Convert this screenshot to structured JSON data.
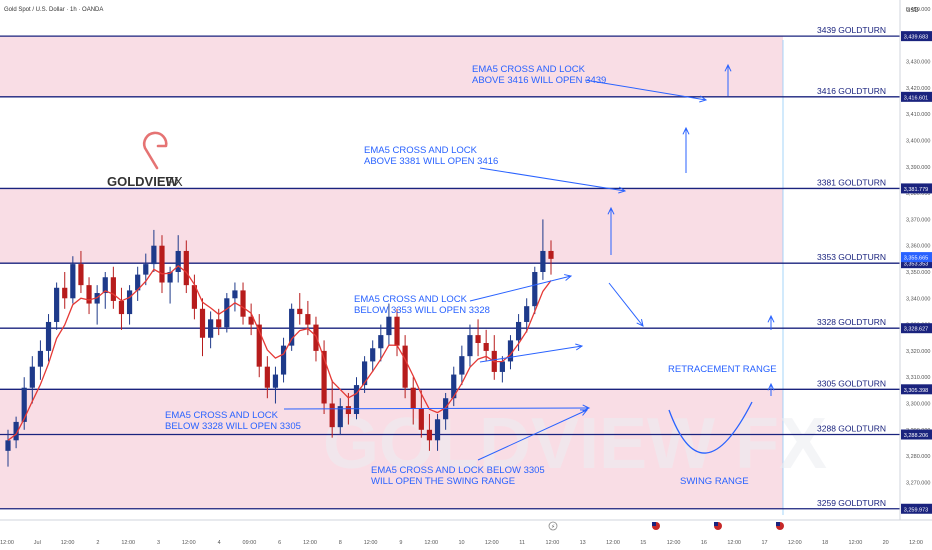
{
  "header": {
    "title": "Gold Spot / U.S. Dollar · 1h · OANDA",
    "currency": "USD"
  },
  "logo": {
    "brand": "GOLDVIEW",
    "suffix": "FX",
    "watermark": "GOLDVIEW FX"
  },
  "colors": {
    "zone_fill": "#f8d7e1",
    "level_line": "#1a237e",
    "annotation": "#2962ff",
    "candle_up": "#1e3a8a",
    "candle_down": "#b71c1c",
    "ema": "#e53935",
    "logo_accent": "#e57373",
    "label_bg": "#1a237e"
  },
  "footer": {
    "icons": [
      "lightning-icon",
      "us-flag-icon",
      "us-flag-icon",
      "us-flag-icon"
    ]
  },
  "chart_data": {
    "type": "candlestick",
    "title": "Gold Spot / U.S. Dollar · 1h · OANDA",
    "ylim": [
      3255,
      3450
    ],
    "y_axis_ticks": [
      3260,
      3270,
      3280,
      3290,
      3300,
      3310,
      3320,
      3330,
      3340,
      3350,
      3360,
      3370,
      3380,
      3390,
      3400,
      3410,
      3420,
      3430,
      3440,
      3450
    ],
    "y_axis_labels": [
      "3,260.000",
      "3,270.000",
      "3,280.000",
      "3,290.000",
      "3,300.000",
      "3,310.000",
      "3,320.000",
      "3,330.000",
      "3,340.000",
      "3,350.000",
      "3,360.000",
      "3,370.000",
      "3,380.000",
      "3,390.000",
      "3,400.000",
      "3,410.000",
      "3,420.000",
      "3,430.000",
      "3,440.000",
      "3,450.000"
    ],
    "x_axis_labels": [
      "12:00",
      "Jul",
      "12:00",
      "2",
      "12:00",
      "3",
      "12:00",
      "4",
      "09:00",
      "6",
      "12:00",
      "8",
      "12:00",
      "9",
      "12:00",
      "10",
      "12:00",
      "11",
      "12:00",
      "13",
      "12:00",
      "15",
      "12:00",
      "16",
      "12:00",
      "17",
      "12:00",
      "18",
      "12:00",
      "20",
      "12:00",
      "21",
      "12:0"
    ],
    "price_levels": [
      {
        "value": 3439.683,
        "label": "3439 GOLDTURN",
        "axis_label": "3,439.683"
      },
      {
        "value": 3416.601,
        "label": "3416 GOLDTURN",
        "axis_label": "3,416.601"
      },
      {
        "value": 3381.779,
        "label": "3381 GOLDTURN",
        "axis_label": "3,381.779"
      },
      {
        "value": 3353.353,
        "label": "3353 GOLDTURN",
        "axis_label": "3,353.353"
      },
      {
        "value": 3328.627,
        "label": "3328 GOLDTURN",
        "axis_label": "3,328.627"
      },
      {
        "value": 3305.398,
        "label": "3305 GOLDTURN",
        "axis_label": "3,305.398"
      },
      {
        "value": 3288.206,
        "label": "3288 GOLDTURN",
        "axis_label": "3,288.206"
      },
      {
        "value": 3259.973,
        "label": "3259 GOLDTURN",
        "axis_label": "3,259.973"
      }
    ],
    "zones": [
      {
        "from": 3416.601,
        "to": 3439.683
      },
      {
        "from": 3353.353,
        "to": 3381.779
      },
      {
        "from": 3259.973,
        "to": 3305.398
      }
    ],
    "current_price": {
      "value": 3355.665,
      "label": "3,355.665"
    },
    "annotations": [
      {
        "lines": [
          "EMA5 CROSS AND LOCK",
          "ABOVE 3416 WILL OPEN 3439"
        ]
      },
      {
        "lines": [
          "EMA5 CROSS AND LOCK",
          "ABOVE 3381 WILL OPEN 3416"
        ]
      },
      {
        "lines": [
          "EMA5 CROSS AND LOCK",
          "BELOW 3353 WILL OPEN 3328"
        ]
      },
      {
        "lines": [
          "EMA5 CROSS AND LOCK",
          "BELOW 3328 WILL OPEN 3305"
        ]
      },
      {
        "lines": [
          "EMA5 CROSS AND LOCK BELOW 3305",
          "WILL OPEN THE SWING RANGE"
        ]
      },
      {
        "lines": [
          "RETRACEMENT RANGE"
        ]
      },
      {
        "lines": [
          "SWING RANGE"
        ]
      }
    ],
    "ohlc": [
      [
        3282,
        3290,
        3276,
        3286
      ],
      [
        3286,
        3295,
        3283,
        3293
      ],
      [
        3293,
        3310,
        3290,
        3306
      ],
      [
        3306,
        3318,
        3300,
        3314
      ],
      [
        3314,
        3324,
        3309,
        3320
      ],
      [
        3320,
        3334,
        3316,
        3331
      ],
      [
        3331,
        3346,
        3328,
        3344
      ],
      [
        3344,
        3350,
        3336,
        3340
      ],
      [
        3340,
        3356,
        3338,
        3353
      ],
      [
        3353,
        3358,
        3342,
        3345
      ],
      [
        3345,
        3348,
        3334,
        3338
      ],
      [
        3338,
        3345,
        3330,
        3342
      ],
      [
        3342,
        3350,
        3336,
        3348
      ],
      [
        3348,
        3352,
        3336,
        3339
      ],
      [
        3339,
        3344,
        3328,
        3334
      ],
      [
        3334,
        3345,
        3330,
        3343
      ],
      [
        3343,
        3352,
        3339,
        3349
      ],
      [
        3349,
        3357,
        3345,
        3353
      ],
      [
        3353,
        3366,
        3350,
        3360
      ],
      [
        3360,
        3364,
        3342,
        3346
      ],
      [
        3346,
        3352,
        3338,
        3350
      ],
      [
        3350,
        3364,
        3346,
        3358
      ],
      [
        3358,
        3362,
        3342,
        3345
      ],
      [
        3345,
        3349,
        3332,
        3336
      ],
      [
        3336,
        3340,
        3318,
        3325
      ],
      [
        3325,
        3335,
        3321,
        3332
      ],
      [
        3332,
        3336,
        3326,
        3329
      ],
      [
        3329,
        3342,
        3327,
        3340
      ],
      [
        3340,
        3346,
        3335,
        3343
      ],
      [
        3343,
        3346,
        3330,
        3333
      ],
      [
        3333,
        3338,
        3326,
        3330
      ],
      [
        3330,
        3334,
        3310,
        3314
      ],
      [
        3314,
        3318,
        3302,
        3306
      ],
      [
        3306,
        3314,
        3300,
        3311
      ],
      [
        3311,
        3325,
        3308,
        3322
      ],
      [
        3322,
        3338,
        3320,
        3336
      ],
      [
        3336,
        3342,
        3330,
        3334
      ],
      [
        3334,
        3339,
        3326,
        3330
      ],
      [
        3330,
        3333,
        3316,
        3320
      ],
      [
        3320,
        3324,
        3296,
        3300
      ],
      [
        3300,
        3309,
        3287,
        3291
      ],
      [
        3291,
        3302,
        3288,
        3299
      ],
      [
        3299,
        3304,
        3292,
        3296
      ],
      [
        3296,
        3310,
        3294,
        3307
      ],
      [
        3307,
        3318,
        3304,
        3316
      ],
      [
        3316,
        3324,
        3312,
        3321
      ],
      [
        3321,
        3330,
        3316,
        3326
      ],
      [
        3326,
        3338,
        3322,
        3333
      ],
      [
        3333,
        3336,
        3318,
        3322
      ],
      [
        3322,
        3326,
        3302,
        3306
      ],
      [
        3306,
        3310,
        3292,
        3298
      ],
      [
        3298,
        3305,
        3287,
        3290
      ],
      [
        3290,
        3296,
        3282,
        3286
      ],
      [
        3286,
        3296,
        3282,
        3294
      ],
      [
        3294,
        3304,
        3290,
        3302
      ],
      [
        3302,
        3314,
        3299,
        3311
      ],
      [
        3311,
        3322,
        3307,
        3318
      ],
      [
        3318,
        3330,
        3314,
        3326
      ],
      [
        3326,
        3332,
        3318,
        3323
      ],
      [
        3323,
        3328,
        3316,
        3320
      ],
      [
        3320,
        3326,
        3309,
        3312
      ],
      [
        3312,
        3318,
        3308,
        3316
      ],
      [
        3316,
        3326,
        3313,
        3324
      ],
      [
        3324,
        3334,
        3320,
        3331
      ],
      [
        3331,
        3340,
        3327,
        3337
      ],
      [
        3337,
        3352,
        3334,
        3350
      ],
      [
        3350,
        3370,
        3347,
        3358
      ],
      [
        3358,
        3362,
        3349,
        3355
      ]
    ]
  }
}
